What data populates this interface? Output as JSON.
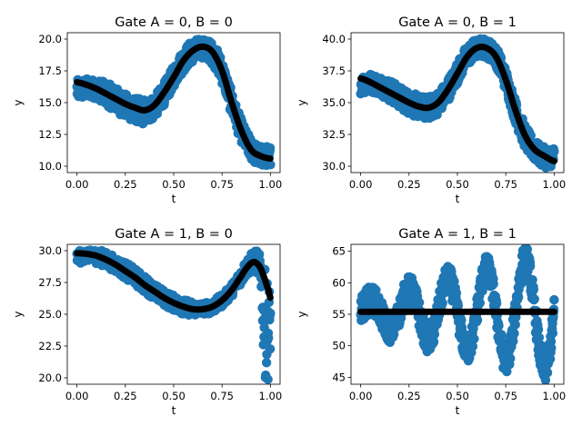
{
  "colors": {
    "scatter": "#1f77b4",
    "fit": "#000000",
    "axes": "#000000",
    "background": "#ffffff"
  },
  "chart_data": [
    {
      "type": "scatter",
      "title": "Gate A = 0, B = 0",
      "xlabel": "t",
      "ylabel": "y",
      "xlim": [
        -0.05,
        1.05
      ],
      "ylim": [
        9.5,
        20.5
      ],
      "xticks": [
        0.0,
        0.25,
        0.5,
        0.75,
        1.0
      ],
      "xtick_labels": [
        "0.00",
        "0.25",
        "0.50",
        "0.75",
        "1.00"
      ],
      "yticks": [
        10.0,
        12.5,
        15.0,
        17.5,
        20.0
      ],
      "ytick_labels": [
        "10.0",
        "12.5",
        "15.0",
        "17.5",
        "20.0"
      ],
      "fit_curve": {
        "t": [
          0.0,
          0.05,
          0.1,
          0.15,
          0.2,
          0.25,
          0.3,
          0.35,
          0.4,
          0.45,
          0.5,
          0.55,
          0.6,
          0.65,
          0.7,
          0.75,
          0.8,
          0.85,
          0.9,
          0.95,
          1.0
        ],
        "y": [
          16.6,
          16.4,
          16.1,
          15.7,
          15.3,
          14.9,
          14.6,
          14.4,
          14.8,
          15.8,
          17.0,
          18.3,
          19.1,
          19.4,
          19.0,
          17.5,
          15.0,
          12.8,
          11.3,
          10.8,
          10.6
        ]
      },
      "scatter_band": {
        "t": [
          0.0,
          0.05,
          0.1,
          0.15,
          0.2,
          0.25,
          0.3,
          0.35,
          0.4,
          0.45,
          0.5,
          0.55,
          0.6,
          0.65,
          0.7,
          0.75,
          0.8,
          0.85,
          0.9,
          0.95,
          1.0
        ],
        "y_low": [
          15.2,
          15.3,
          15.3,
          14.8,
          14.3,
          13.8,
          13.5,
          13.3,
          13.8,
          14.8,
          16.2,
          17.4,
          18.2,
          18.5,
          18.0,
          16.5,
          14.0,
          11.9,
          10.5,
          10.0,
          10.1
        ],
        "y_high": [
          16.8,
          16.9,
          16.8,
          16.6,
          16.2,
          15.7,
          15.4,
          15.3,
          15.6,
          16.6,
          17.9,
          19.2,
          19.9,
          20.0,
          19.7,
          18.4,
          15.9,
          13.7,
          12.2,
          11.6,
          11.6
        ]
      }
    },
    {
      "type": "scatter",
      "title": "Gate A = 0, B = 1",
      "xlabel": "t",
      "ylabel": "y",
      "xlim": [
        -0.05,
        1.05
      ],
      "ylim": [
        29.5,
        40.5
      ],
      "xticks": [
        0.0,
        0.25,
        0.5,
        0.75,
        1.0
      ],
      "xtick_labels": [
        "0.00",
        "0.25",
        "0.50",
        "0.75",
        "1.00"
      ],
      "yticks": [
        30.0,
        32.5,
        35.0,
        37.5,
        40.0
      ],
      "ytick_labels": [
        "30.0",
        "32.5",
        "35.0",
        "37.5",
        "40.0"
      ],
      "fit_curve": {
        "t": [
          0.0,
          0.05,
          0.1,
          0.15,
          0.2,
          0.25,
          0.3,
          0.35,
          0.4,
          0.45,
          0.5,
          0.55,
          0.6,
          0.65,
          0.7,
          0.75,
          0.8,
          0.85,
          0.9,
          0.95,
          1.0
        ],
        "y": [
          36.9,
          36.6,
          36.2,
          35.8,
          35.4,
          35.0,
          34.7,
          34.6,
          35.0,
          36.0,
          37.3,
          38.6,
          39.3,
          39.3,
          38.6,
          36.8,
          34.4,
          32.4,
          31.3,
          30.8,
          30.4
        ]
      },
      "scatter_band": {
        "t": [
          0.0,
          0.05,
          0.1,
          0.15,
          0.2,
          0.25,
          0.3,
          0.35,
          0.4,
          0.45,
          0.5,
          0.55,
          0.6,
          0.65,
          0.7,
          0.75,
          0.8,
          0.85,
          0.9,
          0.95,
          1.0
        ],
        "y_low": [
          35.7,
          35.8,
          35.6,
          35.1,
          34.6,
          34.1,
          33.8,
          33.7,
          34.1,
          35.1,
          36.5,
          37.8,
          38.5,
          38.5,
          37.8,
          35.9,
          33.4,
          31.4,
          30.4,
          29.9,
          30.0
        ],
        "y_high": [
          37.2,
          37.3,
          37.1,
          36.8,
          36.3,
          35.9,
          35.6,
          35.5,
          35.9,
          36.9,
          38.2,
          39.5,
          40.0,
          40.0,
          39.4,
          37.7,
          35.3,
          33.3,
          32.1,
          31.5,
          31.5
        ]
      }
    },
    {
      "type": "scatter",
      "title": "Gate A = 1, B = 0",
      "xlabel": "t",
      "ylabel": "y",
      "xlim": [
        -0.05,
        1.05
      ],
      "ylim": [
        19.5,
        30.5
      ],
      "xticks": [
        0.0,
        0.25,
        0.5,
        0.75,
        1.0
      ],
      "xtick_labels": [
        "0.00",
        "0.25",
        "0.50",
        "0.75",
        "1.00"
      ],
      "yticks": [
        20.0,
        22.5,
        25.0,
        27.5,
        30.0
      ],
      "ytick_labels": [
        "20.0",
        "22.5",
        "25.0",
        "27.5",
        "30.0"
      ],
      "fit_curve": {
        "t": [
          0.0,
          0.05,
          0.1,
          0.15,
          0.2,
          0.25,
          0.3,
          0.35,
          0.4,
          0.45,
          0.5,
          0.55,
          0.6,
          0.65,
          0.7,
          0.75,
          0.8,
          0.85,
          0.88,
          0.91,
          0.93,
          0.95,
          0.97,
          0.99,
          1.0
        ],
        "y": [
          29.8,
          29.75,
          29.6,
          29.3,
          28.9,
          28.4,
          27.9,
          27.3,
          26.8,
          26.3,
          25.9,
          25.6,
          25.4,
          25.4,
          25.6,
          26.1,
          26.9,
          28.0,
          28.7,
          29.1,
          29.0,
          28.6,
          27.8,
          26.9,
          26.3
        ]
      },
      "scatter_band": {
        "t": [
          0.0,
          0.05,
          0.1,
          0.15,
          0.2,
          0.25,
          0.3,
          0.35,
          0.4,
          0.45,
          0.5,
          0.55,
          0.6,
          0.65,
          0.7,
          0.75,
          0.8,
          0.85,
          0.88,
          0.91,
          0.93,
          0.95,
          0.97,
          0.99,
          1.0
        ],
        "y_low": [
          28.9,
          29.2,
          29.0,
          28.7,
          28.3,
          27.8,
          27.3,
          26.7,
          26.2,
          25.7,
          25.3,
          25.0,
          24.9,
          25.0,
          25.1,
          25.6,
          26.4,
          27.4,
          28.0,
          28.4,
          28.2,
          27.6,
          20.5,
          20.0,
          22.0
        ],
        "y_high": [
          30.0,
          30.0,
          30.1,
          29.9,
          29.5,
          29.1,
          28.6,
          28.0,
          27.4,
          26.9,
          26.5,
          26.2,
          26.0,
          25.9,
          26.1,
          26.6,
          27.4,
          28.6,
          29.4,
          29.9,
          30.0,
          29.5,
          28.6,
          27.6,
          26.8
        ]
      }
    },
    {
      "type": "scatter",
      "title": "Gate A = 1, B = 1",
      "xlabel": "t",
      "ylabel": "y",
      "xlim": [
        -0.05,
        1.05
      ],
      "ylim": [
        43.9,
        66.1
      ],
      "xticks": [
        0.0,
        0.25,
        0.5,
        0.75,
        1.0
      ],
      "xtick_labels": [
        "0.00",
        "0.25",
        "0.50",
        "0.75",
        "1.00"
      ],
      "yticks": [
        45,
        50,
        55,
        60,
        65
      ],
      "ytick_labels": [
        "45",
        "50",
        "55",
        "60",
        "65"
      ],
      "fit_curve": {
        "t": [
          0.0,
          1.0
        ],
        "y": [
          55.4,
          55.4
        ]
      },
      "scatter_oscillation": {
        "center": 55.4,
        "amplitude_start": 1.5,
        "amplitude_end": 9.5,
        "cycles": 5,
        "phase": 0.0,
        "thickness": 2.2
      }
    }
  ]
}
